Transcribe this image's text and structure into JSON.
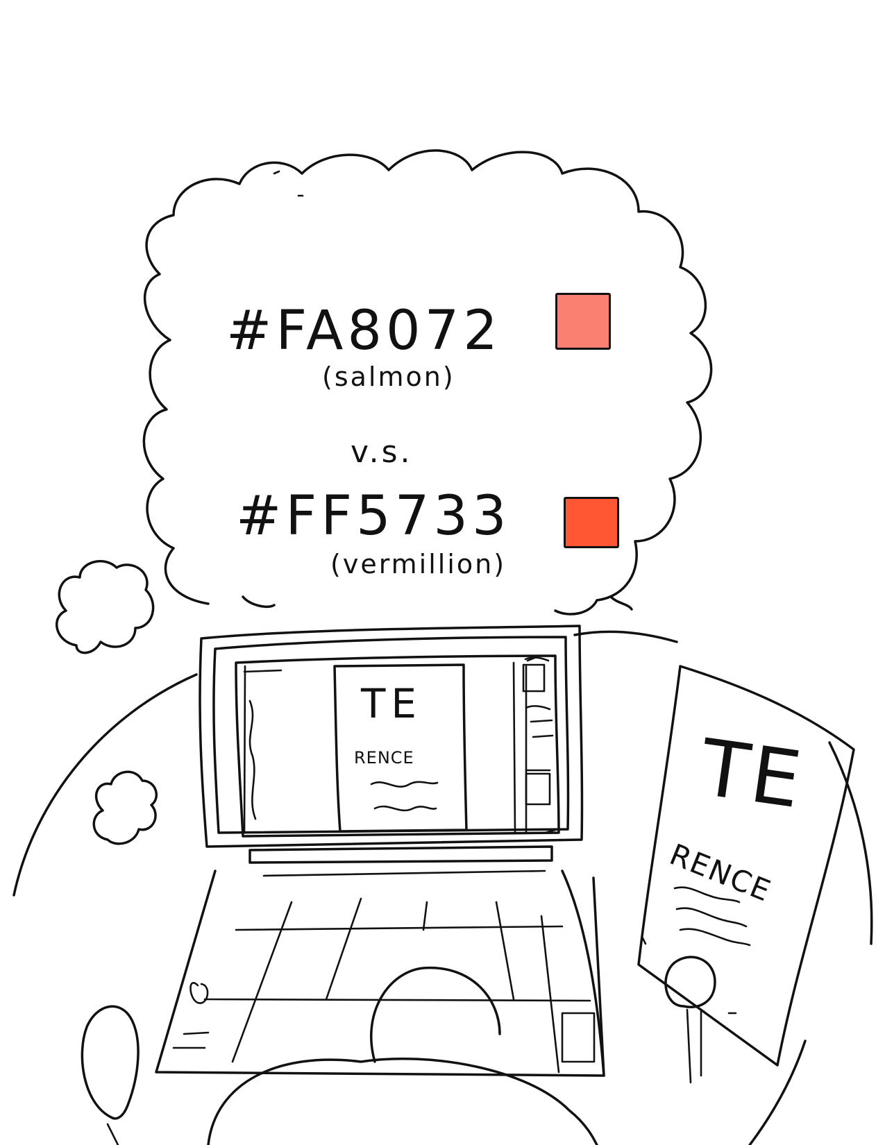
{
  "thought": {
    "color_a": {
      "hex_label": "#FA8072",
      "name_label": "(salmon)",
      "swatch_color": "#FA8072"
    },
    "versus_label": "v.s.",
    "color_b": {
      "hex_label": "#FF5733",
      "name_label": "(vermillion)",
      "swatch_color": "#FF5733"
    }
  },
  "laptop_screen": {
    "title": "TE",
    "subtitle": "RENCE"
  },
  "printed_page": {
    "title": "TE",
    "subtitle": "RENCE"
  }
}
